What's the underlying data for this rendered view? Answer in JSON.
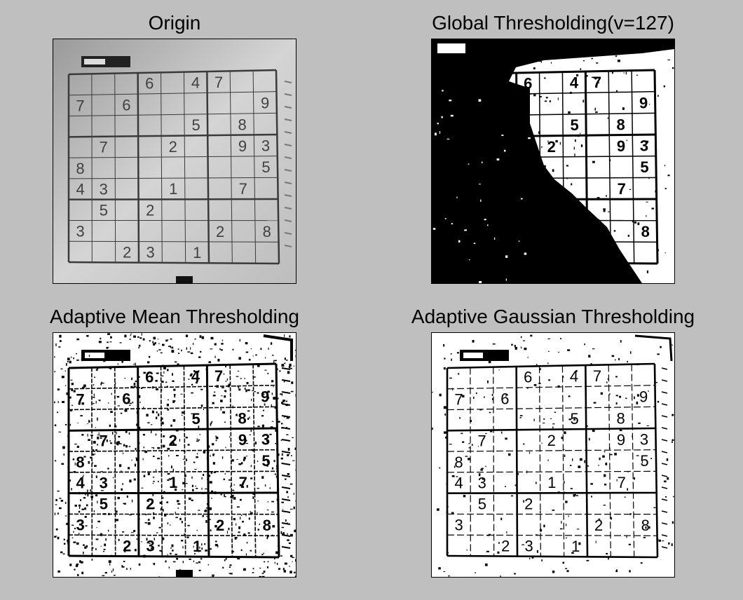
{
  "panels": [
    {
      "id": "origin",
      "title": "Origin"
    },
    {
      "id": "global",
      "title": "Global Thresholding(v=127)"
    },
    {
      "id": "mean",
      "title": "Adaptive Mean Thresholding"
    },
    {
      "id": "gauss",
      "title": "Adaptive Gaussian Thresholding"
    }
  ],
  "sudoku": {
    "rows": [
      [
        "",
        "",
        "",
        "6",
        "",
        "4",
        "7",
        "",
        ""
      ],
      [
        "7",
        "",
        "6",
        "",
        "",
        "",
        "",
        "",
        "9"
      ],
      [
        "",
        "",
        "",
        "",
        "",
        "5",
        "",
        "8",
        ""
      ],
      [
        "",
        "7",
        "",
        "",
        "2",
        "",
        "",
        "9",
        "3"
      ],
      [
        "8",
        "",
        "",
        "",
        "",
        "",
        "",
        "",
        "5"
      ],
      [
        "4",
        "3",
        "",
        "",
        "1",
        "",
        "",
        "7",
        ""
      ],
      [
        "",
        "5",
        "",
        "2",
        "",
        "",
        "",
        "",
        ""
      ],
      [
        "3",
        "",
        "",
        "",
        "",
        "",
        "2",
        "",
        "8"
      ],
      [
        "",
        "",
        "2",
        "3",
        "",
        "1",
        "",
        "",
        ""
      ]
    ]
  },
  "colors": {
    "background": "#bfbfbf",
    "origin_paper": "#d9d9d9",
    "origin_ink": "#4a4a4a"
  }
}
